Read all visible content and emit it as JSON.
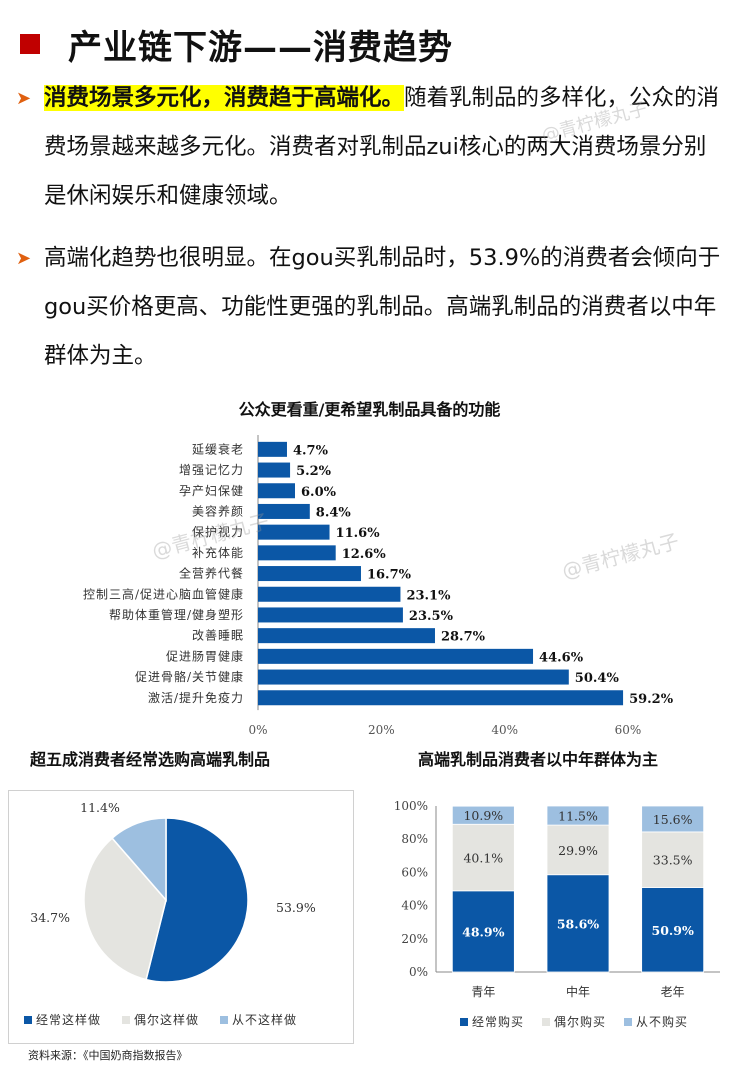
{
  "title": "产业链下游——消费趋势",
  "bullets": [
    {
      "highlight": "消费场景多元化，消费趋于高端化。",
      "text": "随着乳制品的多样化，公众的消费场景越来越多元化。消费者对乳制品zui核心的两大消费场景分别是休闲娱乐和健康领域。"
    },
    {
      "text": "高端化趋势也很明显。在gou买乳制品时，53.9%的消费者会倾向于gou买价格更高、功能性更强的乳制品。高端乳制品的消费者以中年群体为主。"
    }
  ],
  "colors": {
    "accent": "#c00000",
    "primary": "#0b57a6",
    "secondary": "#e4e4e0",
    "tertiary": "#9dbfe0",
    "arrow": "#e06010"
  },
  "watermark": "@青柠檬丸子",
  "source": "资料来源：《中国奶商指数报告》",
  "chart_data": [
    {
      "type": "bar",
      "orientation": "horizontal",
      "title": "公众更看重/更希望乳制品具备的功能",
      "categories": [
        "延缓衰老",
        "增强记忆力",
        "孕产妇保健",
        "美容养颜",
        "保护视力",
        "补充体能",
        "全营养代餐",
        "控制三高/促进心脑血管健康",
        "帮助体重管理/健身塑形",
        "改善睡眠",
        "促进肠胃健康",
        "促进骨骼/关节健康",
        "激活/提升免疫力"
      ],
      "values": [
        4.7,
        5.2,
        6.0,
        8.4,
        11.6,
        12.6,
        16.7,
        23.1,
        23.5,
        28.7,
        44.6,
        50.4,
        59.2
      ],
      "value_labels": [
        "4.7%",
        "5.2%",
        "6.0%",
        "8.4%",
        "11.6%",
        "12.6%",
        "16.7%",
        "23.1%",
        "23.5%",
        "28.7%",
        "44.6%",
        "50.4%",
        "59.2%"
      ],
      "xlim": [
        0,
        60
      ],
      "xticks": [
        "0%",
        "20%",
        "40%",
        "60%"
      ],
      "color": "#0b57a6"
    },
    {
      "type": "pie",
      "title": "超五成消费者经常选购高端乳制品",
      "labels": [
        "经常这样做",
        "偶尔这样做",
        "从不这样做"
      ],
      "values": [
        53.9,
        34.7,
        11.4
      ],
      "value_labels": [
        "53.9%",
        "34.7%",
        "11.4%"
      ],
      "colors": [
        "#0b57a6",
        "#e4e4e0",
        "#9dbfe0"
      ],
      "legend": "bottom"
    },
    {
      "type": "bar",
      "stacked": true,
      "title": "高端乳制品消费者以中年群体为主",
      "categories": [
        "青年",
        "中年",
        "老年"
      ],
      "series": [
        {
          "name": "经常购买",
          "values": [
            48.9,
            58.6,
            50.9
          ],
          "labels": [
            "48.9%",
            "58.6%",
            "50.9%"
          ],
          "color": "#0b57a6"
        },
        {
          "name": "偶尔购买",
          "values": [
            40.1,
            29.9,
            33.5
          ],
          "labels": [
            "40.1%",
            "29.9%",
            "33.5%"
          ],
          "color": "#e4e4e0"
        },
        {
          "name": "从不购买",
          "values": [
            10.9,
            11.5,
            15.6
          ],
          "labels": [
            "10.9%",
            "11.5%",
            "15.6%"
          ],
          "color": "#9dbfe0"
        }
      ],
      "ylim": [
        0,
        100
      ],
      "yticks": [
        "0%",
        "20%",
        "40%",
        "60%",
        "80%",
        "100%"
      ],
      "legend": "bottom"
    }
  ]
}
